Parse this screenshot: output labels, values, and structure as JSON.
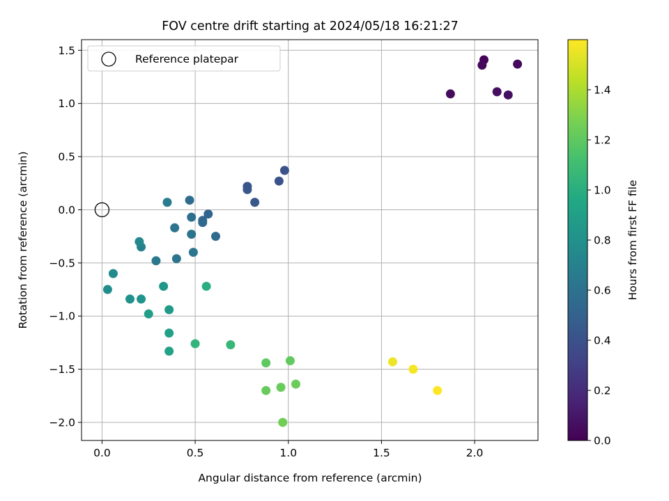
{
  "chart_data": {
    "type": "scatter",
    "title": "FOV centre drift starting at 2024/05/18 16:21:27",
    "xlabel": "Angular distance from reference (arcmin)",
    "ylabel": "Rotation from reference (arcmin)",
    "xlim": [
      -0.11,
      2.34
    ],
    "ylim": [
      -2.17,
      1.6
    ],
    "x_ticks": [
      0.0,
      0.5,
      1.0,
      1.5,
      2.0
    ],
    "x_tick_labels": [
      "0.0",
      "0.5",
      "1.0",
      "1.5",
      "2.0"
    ],
    "y_ticks": [
      -2.0,
      -1.5,
      -1.0,
      -0.5,
      0.0,
      0.5,
      1.0,
      1.5
    ],
    "y_tick_labels": [
      "−2.0",
      "−1.5",
      "−1.0",
      "−0.5",
      "0.0",
      "0.5",
      "1.0",
      "1.5"
    ],
    "grid": true,
    "legend": {
      "placement": "top-left",
      "entries": [
        {
          "label": "Reference platepar",
          "marker": "hollow-circle"
        }
      ]
    },
    "reference_point": {
      "x": 0.0,
      "y": 0.0
    },
    "colorbar": {
      "label": "Hours from first FF file",
      "colormap": "viridis",
      "min": 0.0,
      "max": 1.6,
      "ticks": [
        0.0,
        0.2,
        0.4,
        0.6,
        0.8,
        1.0,
        1.2,
        1.4
      ],
      "tick_labels": [
        "0.0",
        "0.2",
        "0.4",
        "0.6",
        "0.8",
        "1.0",
        "1.2",
        "1.4"
      ]
    },
    "points": [
      {
        "x": 2.05,
        "y": 1.41,
        "c": 0.02
      },
      {
        "x": 2.04,
        "y": 1.36,
        "c": 0.03
      },
      {
        "x": 2.23,
        "y": 1.37,
        "c": 0.04
      },
      {
        "x": 1.87,
        "y": 1.09,
        "c": 0.05
      },
      {
        "x": 2.12,
        "y": 1.11,
        "c": 0.06
      },
      {
        "x": 2.18,
        "y": 1.08,
        "c": 0.07
      },
      {
        "x": 0.98,
        "y": 0.37,
        "c": 0.4
      },
      {
        "x": 0.95,
        "y": 0.27,
        "c": 0.41
      },
      {
        "x": 0.78,
        "y": 0.22,
        "c": 0.42
      },
      {
        "x": 0.78,
        "y": 0.19,
        "c": 0.43
      },
      {
        "x": 0.82,
        "y": 0.07,
        "c": 0.44
      },
      {
        "x": 0.57,
        "y": -0.04,
        "c": 0.52
      },
      {
        "x": 0.54,
        "y": -0.1,
        "c": 0.53
      },
      {
        "x": 0.54,
        "y": -0.12,
        "c": 0.54
      },
      {
        "x": 0.61,
        "y": -0.25,
        "c": 0.55
      },
      {
        "x": 0.47,
        "y": 0.09,
        "c": 0.57
      },
      {
        "x": 0.48,
        "y": -0.07,
        "c": 0.58
      },
      {
        "x": 0.39,
        "y": -0.17,
        "c": 0.6
      },
      {
        "x": 0.48,
        "y": -0.23,
        "c": 0.61
      },
      {
        "x": 0.49,
        "y": -0.4,
        "c": 0.62
      },
      {
        "x": 0.4,
        "y": -0.46,
        "c": 0.63
      },
      {
        "x": 0.29,
        "y": -0.48,
        "c": 0.64
      },
      {
        "x": 0.35,
        "y": 0.07,
        "c": 0.66
      },
      {
        "x": 0.21,
        "y": -0.35,
        "c": 0.7
      },
      {
        "x": 0.2,
        "y": -0.3,
        "c": 0.74
      },
      {
        "x": 0.06,
        "y": -0.6,
        "c": 0.76
      },
      {
        "x": 0.03,
        "y": -0.75,
        "c": 0.78
      },
      {
        "x": 0.15,
        "y": -0.84,
        "c": 0.8
      },
      {
        "x": 0.21,
        "y": -0.84,
        "c": 0.82
      },
      {
        "x": 0.33,
        "y": -0.72,
        "c": 0.84
      },
      {
        "x": 0.36,
        "y": -0.94,
        "c": 0.86
      },
      {
        "x": 0.25,
        "y": -0.98,
        "c": 0.88
      },
      {
        "x": 0.36,
        "y": -1.16,
        "c": 0.9
      },
      {
        "x": 0.36,
        "y": -1.33,
        "c": 0.92
      },
      {
        "x": 0.56,
        "y": -0.72,
        "c": 1.0
      },
      {
        "x": 0.5,
        "y": -1.26,
        "c": 1.04
      },
      {
        "x": 0.69,
        "y": -1.27,
        "c": 1.06
      },
      {
        "x": 0.88,
        "y": -1.44,
        "c": 1.2
      },
      {
        "x": 1.01,
        "y": -1.42,
        "c": 1.21
      },
      {
        "x": 0.88,
        "y": -1.7,
        "c": 1.22
      },
      {
        "x": 0.96,
        "y": -1.67,
        "c": 1.23
      },
      {
        "x": 1.04,
        "y": -1.64,
        "c": 1.24
      },
      {
        "x": 0.97,
        "y": -2.0,
        "c": 1.25
      },
      {
        "x": 1.56,
        "y": -1.43,
        "c": 1.56
      },
      {
        "x": 1.67,
        "y": -1.5,
        "c": 1.58
      },
      {
        "x": 1.8,
        "y": -1.7,
        "c": 1.6
      }
    ]
  }
}
